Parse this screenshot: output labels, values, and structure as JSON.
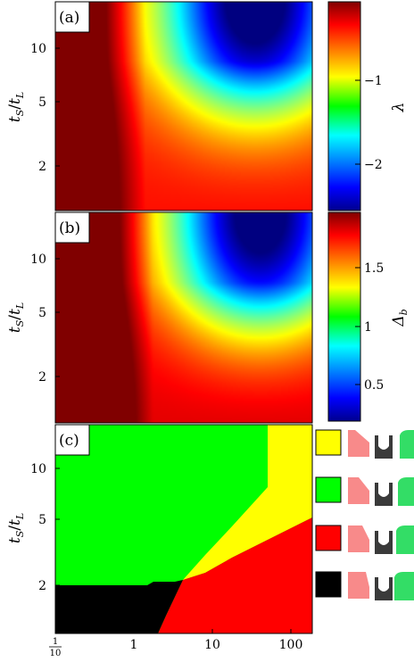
{
  "chart_data": [
    {
      "type": "heatmap",
      "panel_label": "(a)",
      "ylabel": "t_S/t_L",
      "y_ticks": [
        "2",
        "5",
        "10"
      ],
      "colorbar": {
        "label": "λ",
        "ticks": [
          "−1",
          "−2"
        ],
        "range": [
          -2.5,
          0
        ],
        "colormap": "jet"
      },
      "description_values": {
        "min_region": "top-right (x≈20–50, y≈10–15)",
        "max_region": "left edge"
      }
    },
    {
      "type": "heatmap",
      "panel_label": "(b)",
      "ylabel": "t_S/t_L",
      "y_ticks": [
        "2",
        "5",
        "10"
      ],
      "colorbar": {
        "label": "Δ_b",
        "ticks": [
          "1.5",
          "1",
          "0.5"
        ],
        "range": [
          0.2,
          1.9
        ],
        "colormap": "jet"
      },
      "description_values": {
        "min_region": "top-right (x≈20–60, y≈10–15)",
        "max_region": "left edge"
      }
    },
    {
      "type": "heatmap",
      "panel_label": "(c)",
      "ylabel": "t_S/t_L",
      "y_ticks": [
        "2",
        "5",
        "10"
      ],
      "x_ticks": [
        "1/10",
        "1",
        "10",
        "100"
      ],
      "x_range": [
        0.05,
        200
      ],
      "y_range": [
        1.3,
        16
      ],
      "categories": [
        {
          "color": "#ffff00",
          "region": "upper-right wedge"
        },
        {
          "color": "#00ff00",
          "region": "upper-left"
        },
        {
          "color": "#ff0000",
          "region": "lower-right"
        },
        {
          "color": "#000000",
          "region": "lower-left, t_S/t_L < 2"
        }
      ],
      "boundaries": {
        "green_yellow": [
          [
            4.5,
            2.2
          ],
          [
            9,
            3.5
          ],
          [
            20,
            6
          ],
          [
            50,
            11
          ],
          [
            90,
            16
          ]
        ],
        "yellow_red": [
          [
            4.5,
            2.2
          ],
          [
            20,
            3.5
          ],
          [
            60,
            5.5
          ],
          [
            200,
            9
          ]
        ],
        "black_top_y": 2.0,
        "black_right": [
          [
            1.7,
            2.0
          ],
          [
            2.3,
            2.0
          ],
          [
            1.6,
            1.5
          ],
          [
            1.2,
            1.3
          ]
        ]
      }
    }
  ],
  "legend_icons": [
    {
      "color": "#ffff00"
    },
    {
      "color": "#00ff00"
    },
    {
      "color": "#ff0000"
    },
    {
      "color": "#000000"
    }
  ],
  "colors": {
    "pink": "#f88a8a",
    "green": "#33dd66",
    "dark": "#3a3a3a"
  }
}
